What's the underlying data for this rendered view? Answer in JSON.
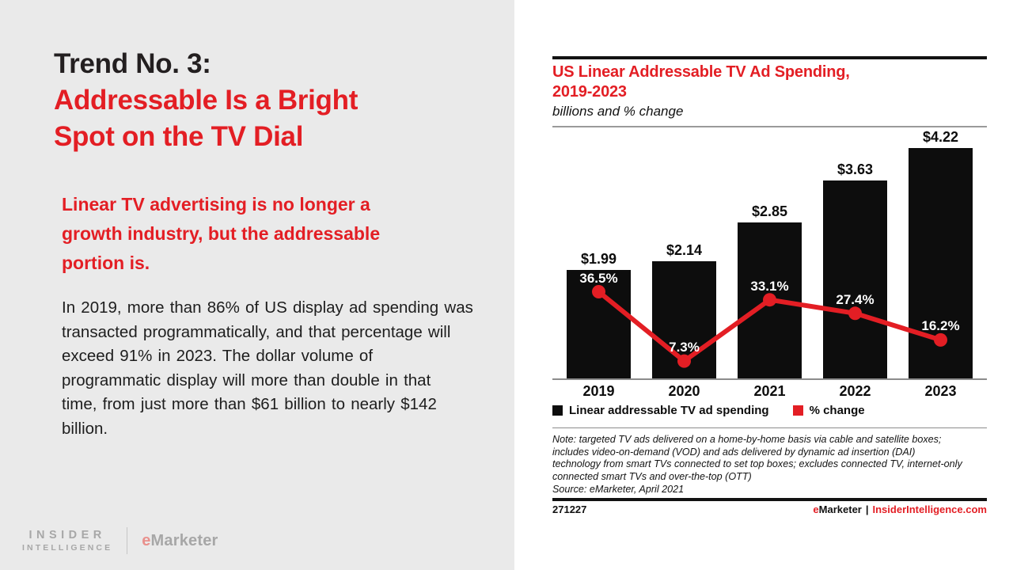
{
  "colors": {
    "accent_red": "#e31e24",
    "bar_black": "#0d0d0d",
    "left_background": "#eaeaea",
    "logo_gray": "#a7a7a7"
  },
  "left": {
    "title_black": "Trend No. 3:",
    "title_red_lines": [
      "Addressable Is a Bright",
      "Spot on the TV Dial"
    ],
    "intro_lines": [
      "Linear TV advertising is no longer a",
      "growth industry, but the addressable",
      "portion is."
    ],
    "body_lines": [
      "In 2019, more than 86% of US display ad spending was",
      "transacted programmatically, and that percentage will",
      "exceed 91% in 2023. The dollar volume of",
      "programmatic display will more than double in that",
      "time, from just more than $61 billion to nearly $142",
      "billion."
    ]
  },
  "brand_footer": {
    "insider_line1": "INSIDER",
    "insider_line2": "INTELLIGENCE",
    "emarketer_e": "e",
    "emarketer_rest": "Marketer"
  },
  "chart": {
    "title_lines": [
      "US Linear Addressable TV Ad Spending,",
      "2019-2023"
    ],
    "subtitle": "billions and % change",
    "legend": [
      {
        "label": "Linear addressable TV ad spending",
        "color": "#0d0d0d"
      },
      {
        "label": "% change",
        "color": "#e31e24"
      }
    ],
    "note_lines": [
      "Note: targeted TV ads delivered on a home-by-home basis via cable and satellite boxes;",
      "includes video-on-demand (VOD) and ads delivered by dynamic ad insertion (DAI)",
      "technology from smart TVs connected to set top boxes; excludes connected TV, internet-only",
      "connected smart TVs and over-the-top (OTT)",
      "Source: eMarketer, April 2021"
    ],
    "footer": {
      "id": "271227",
      "brand_e": "e",
      "brand_rest": "Marketer",
      "separator": "|",
      "site": "InsiderIntelligence.com"
    }
  },
  "chart_data": {
    "type": "bar",
    "title": "US Linear Addressable TV Ad Spending, 2019-2023",
    "subtitle": "billions and % change",
    "categories": [
      "2019",
      "2020",
      "2021",
      "2022",
      "2023"
    ],
    "series": [
      {
        "name": "Linear addressable TV ad spending",
        "type": "bar",
        "unit": "USD billions",
        "values": [
          1.99,
          2.14,
          2.85,
          3.63,
          4.22
        ],
        "labels": [
          "$1.99",
          "$2.14",
          "$2.85",
          "$3.63",
          "$4.22"
        ],
        "color": "#0d0d0d"
      },
      {
        "name": "% change",
        "type": "line",
        "unit": "percent",
        "values": [
          36.5,
          7.3,
          33.1,
          27.4,
          16.2
        ],
        "labels": [
          "36.5%",
          "7.3%",
          "33.1%",
          "27.4%",
          "16.2%"
        ],
        "color": "#e31e24"
      }
    ],
    "legend_position": "bottom",
    "grid": false,
    "y_baseline_shared": true
  }
}
